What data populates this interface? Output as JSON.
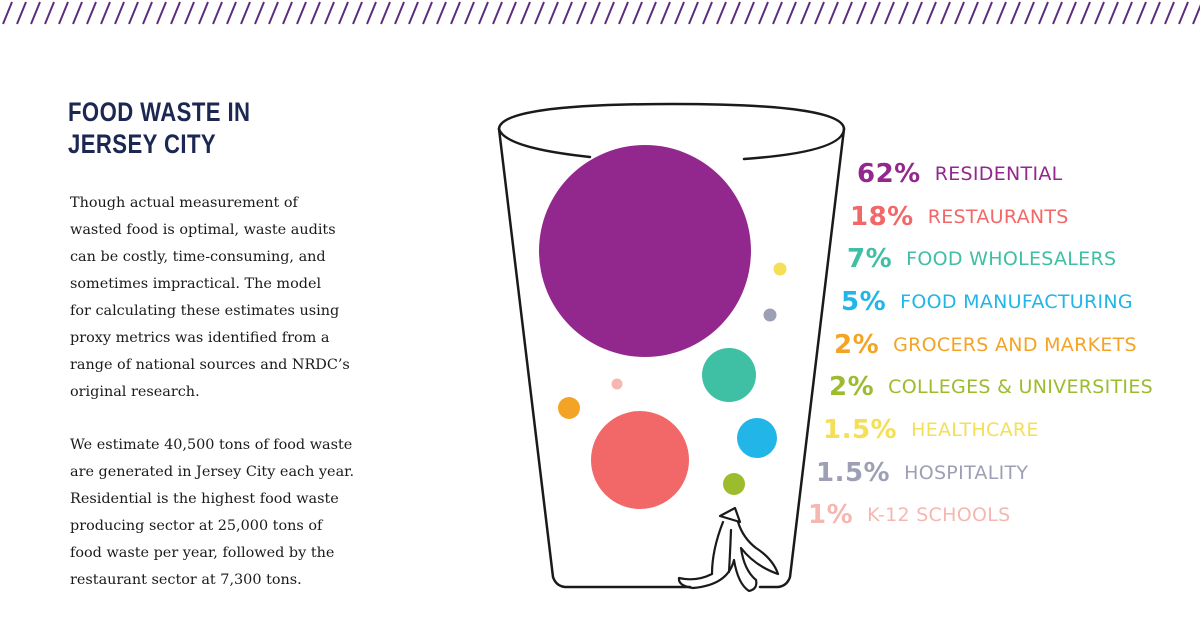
{
  "title": {
    "line1": "FOOD WASTE IN",
    "line2": "JERSEY CITY"
  },
  "paragraph1": [
    "Though actual measurement of",
    "wasted food is optimal, waste audits",
    "can be costly, time-consuming, and",
    "sometimes impractical. The model",
    "for calculating these estimates using",
    "proxy metrics was identified from a",
    "range of national sources and NRDC’s",
    "original research."
  ],
  "paragraph2": [
    "We estimate 40,500 tons of food waste",
    "are generated in Jersey City each year.",
    "Residential is the highest food waste",
    "producing sector at 25,000 tons of",
    "food waste per year, followed by the",
    "restaurant sector at 7,300 tons."
  ],
  "colors": {
    "stripe": "#5b2d7e",
    "title": "#1c2752",
    "outline": "#1a1a1a"
  },
  "legend": [
    {
      "percent": "62%",
      "label": "RESIDENTIAL",
      "color": "#92288e"
    },
    {
      "percent": "18%",
      "label": "RESTAURANTS",
      "color": "#f26767"
    },
    {
      "percent": "7%",
      "label": "FOOD WHOLESALERS",
      "color": "#3fbfa3"
    },
    {
      "percent": "5%",
      "label": "FOOD MANUFACTURING",
      "color": "#22b5e8"
    },
    {
      "percent": "2%",
      "label": "GROCERS AND MARKETS",
      "color": "#f4a425"
    },
    {
      "percent": "2%",
      "label": "COLLEGES & UNIVERSITIES",
      "color": "#9cbb2d"
    },
    {
      "percent": "1.5%",
      "label": "HEALTHCARE",
      "color": "#f4df56"
    },
    {
      "percent": "1.5%",
      "label": "HOSPITALITY",
      "color": "#9da0b5"
    },
    {
      "percent": "1%",
      "label": "K-12 SCHOOLS",
      "color": "#f6b7b0"
    }
  ],
  "chart_data": {
    "type": "bubble",
    "title": "",
    "categories": [
      "RESIDENTIAL",
      "RESTAURANTS",
      "FOOD WHOLESALERS",
      "FOOD MANUFACTURING",
      "GROCERS AND MARKETS",
      "COLLEGES & UNIVERSITIES",
      "HEALTHCARE",
      "HOSPITALITY",
      "K-12 SCHOOLS"
    ],
    "values": [
      62,
      18,
      7,
      5,
      2,
      2,
      1.5,
      1.5,
      1
    ],
    "unit": "%"
  }
}
